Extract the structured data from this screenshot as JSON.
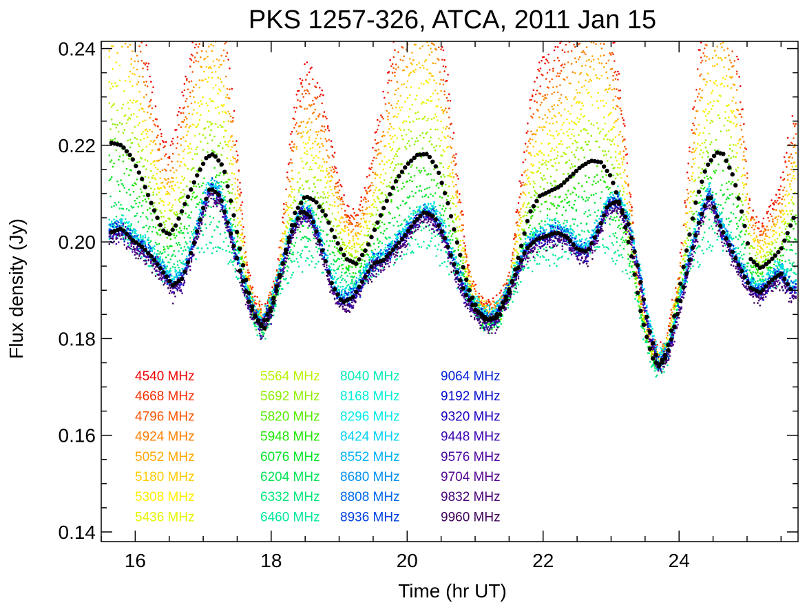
{
  "chart_data": {
    "type": "scatter",
    "title": "PKS 1257-326, ATCA, 2011 Jan 15",
    "xlabel": "Time (hr UT)",
    "ylabel": "Flux density (Jy)",
    "xlim": [
      15.5,
      25.75
    ],
    "ylim": [
      0.138,
      0.2415
    ],
    "x_ticks": [
      16,
      18,
      20,
      22,
      24
    ],
    "x_tick_labels": [
      "16",
      "18",
      "20",
      "22",
      "24"
    ],
    "x_minor_step": 0.5,
    "y_ticks": [
      0.14,
      0.16,
      0.18,
      0.2,
      0.22,
      0.24
    ],
    "y_tick_labels": [
      "0.14",
      "0.16",
      "0.18",
      "0.20",
      "0.22",
      "0.24"
    ],
    "y_minor_step": 0.005,
    "grid": false,
    "legend_placement": "bottom-left, four columns inside plot",
    "series": [
      {
        "name": "4540 MHz",
        "color": "#ee0000"
      },
      {
        "name": "4668 MHz",
        "color": "#f22e00"
      },
      {
        "name": "4796 MHz",
        "color": "#f75500"
      },
      {
        "name": "4924 MHz",
        "color": "#fb7f00"
      },
      {
        "name": "5052 MHz",
        "color": "#ffa800"
      },
      {
        "name": "5180 MHz",
        "color": "#ffcc00"
      },
      {
        "name": "5308 MHz",
        "color": "#ffee00"
      },
      {
        "name": "5436 MHz",
        "color": "#e6f500"
      },
      {
        "name": "5564 MHz",
        "color": "#b8f200"
      },
      {
        "name": "5692 MHz",
        "color": "#8eee00"
      },
      {
        "name": "5820 MHz",
        "color": "#55ea00"
      },
      {
        "name": "5948 MHz",
        "color": "#1ee600"
      },
      {
        "name": "6076 MHz",
        "color": "#00e428"
      },
      {
        "name": "6204 MHz",
        "color": "#00e455"
      },
      {
        "name": "6332 MHz",
        "color": "#00e67a"
      },
      {
        "name": "6460 MHz",
        "color": "#00e89c"
      },
      {
        "name": "8040 MHz",
        "color": "#00eab8"
      },
      {
        "name": "8168 MHz",
        "color": "#00eed6"
      },
      {
        "name": "8296 MHz",
        "color": "#00eaea"
      },
      {
        "name": "8424 MHz",
        "color": "#00d2f2"
      },
      {
        "name": "8552 MHz",
        "color": "#00b2f4"
      },
      {
        "name": "8680 MHz",
        "color": "#0090f0"
      },
      {
        "name": "8808 MHz",
        "color": "#0068ea"
      },
      {
        "name": "8936 MHz",
        "color": "#0040e2"
      },
      {
        "name": "9064 MHz",
        "color": "#0020d8"
      },
      {
        "name": "9192 MHz",
        "color": "#0008cc"
      },
      {
        "name": "9320 MHz",
        "color": "#1a00c0"
      },
      {
        "name": "9448 MHz",
        "color": "#3a00b0"
      },
      {
        "name": "9576 MHz",
        "color": "#4c00a0"
      },
      {
        "name": "9704 MHz",
        "color": "#520090"
      },
      {
        "name": "9832 MHz",
        "color": "#4a0078"
      },
      {
        "name": "9960 MHz",
        "color": "#3c0055"
      }
    ],
    "mean_low_band": {
      "color": "#000000",
      "x": [
        15.65,
        15.8,
        15.95,
        16.1,
        16.25,
        16.4,
        16.5,
        16.6,
        16.75,
        16.9,
        17.05,
        17.15,
        17.3,
        17.45,
        17.6,
        17.75,
        17.9,
        18.05,
        18.2,
        18.35,
        18.5,
        18.65,
        18.8,
        18.95,
        19.1,
        19.25,
        19.4,
        19.55,
        19.7,
        19.85,
        20.0,
        20.15,
        20.3,
        20.45,
        20.6,
        20.75,
        20.9,
        21.05,
        21.2,
        21.35,
        21.5,
        21.65,
        21.8,
        21.95,
        22.1,
        22.25,
        22.4,
        22.55,
        22.7,
        22.85,
        23.0,
        23.15,
        23.3,
        23.45,
        23.6,
        23.7,
        23.8,
        23.95,
        24.1,
        24.25,
        24.4,
        24.55,
        24.65,
        24.8,
        24.95,
        25.05,
        25.2,
        25.35,
        25.5,
        25.6,
        25.7
      ],
      "y": [
        0.2205,
        0.22,
        0.2175,
        0.213,
        0.2075,
        0.2025,
        0.2015,
        0.2035,
        0.2085,
        0.2135,
        0.2175,
        0.2182,
        0.2155,
        0.2055,
        0.194,
        0.1848,
        0.1822,
        0.188,
        0.1975,
        0.206,
        0.2095,
        0.2085,
        0.2055,
        0.2005,
        0.1965,
        0.1955,
        0.1985,
        0.2035,
        0.2085,
        0.213,
        0.216,
        0.218,
        0.2182,
        0.215,
        0.208,
        0.199,
        0.1905,
        0.1855,
        0.1838,
        0.1845,
        0.1895,
        0.1975,
        0.206,
        0.2095,
        0.2105,
        0.2115,
        0.2135,
        0.2155,
        0.2168,
        0.2165,
        0.2135,
        0.207,
        0.197,
        0.1845,
        0.1762,
        0.1742,
        0.176,
        0.186,
        0.1975,
        0.2085,
        0.2155,
        0.2185,
        0.2182,
        0.2135,
        0.2045,
        0.1965,
        0.1945,
        0.1962,
        0.1985,
        0.202,
        0.2055
      ]
    },
    "mean_high_band": {
      "color": "#000000",
      "x": [
        15.65,
        15.8,
        15.95,
        16.1,
        16.25,
        16.4,
        16.55,
        16.7,
        16.85,
        17.0,
        17.1,
        17.25,
        17.4,
        17.55,
        17.7,
        17.85,
        18.0,
        18.15,
        18.3,
        18.45,
        18.6,
        18.75,
        18.9,
        19.05,
        19.2,
        19.35,
        19.5,
        19.65,
        19.8,
        19.95,
        20.1,
        20.25,
        20.4,
        20.55,
        20.7,
        20.85,
        21.0,
        21.15,
        21.3,
        21.45,
        21.6,
        21.75,
        21.9,
        22.05,
        22.2,
        22.35,
        22.5,
        22.65,
        22.8,
        22.95,
        23.1,
        23.25,
        23.4,
        23.55,
        23.7,
        23.85,
        24.0,
        24.15,
        24.3,
        24.45,
        24.6,
        24.75,
        24.9,
        25.05,
        25.2,
        25.35,
        25.5,
        25.65
      ],
      "y": [
        0.202,
        0.2028,
        0.2005,
        0.199,
        0.1968,
        0.194,
        0.191,
        0.1925,
        0.199,
        0.207,
        0.2112,
        0.2095,
        0.202,
        0.1935,
        0.1865,
        0.1825,
        0.1865,
        0.1945,
        0.202,
        0.2065,
        0.205,
        0.1985,
        0.191,
        0.1875,
        0.1885,
        0.192,
        0.1955,
        0.1962,
        0.1985,
        0.201,
        0.204,
        0.2062,
        0.2052,
        0.201,
        0.195,
        0.1895,
        0.186,
        0.1838,
        0.1845,
        0.1885,
        0.1935,
        0.1985,
        0.2005,
        0.2012,
        0.202,
        0.201,
        0.1985,
        0.198,
        0.202,
        0.2075,
        0.2085,
        0.204,
        0.1945,
        0.1825,
        0.1745,
        0.1778,
        0.1865,
        0.196,
        0.2045,
        0.21,
        0.2035,
        0.199,
        0.1945,
        0.1905,
        0.1895,
        0.192,
        0.1935,
        0.19
      ]
    }
  }
}
